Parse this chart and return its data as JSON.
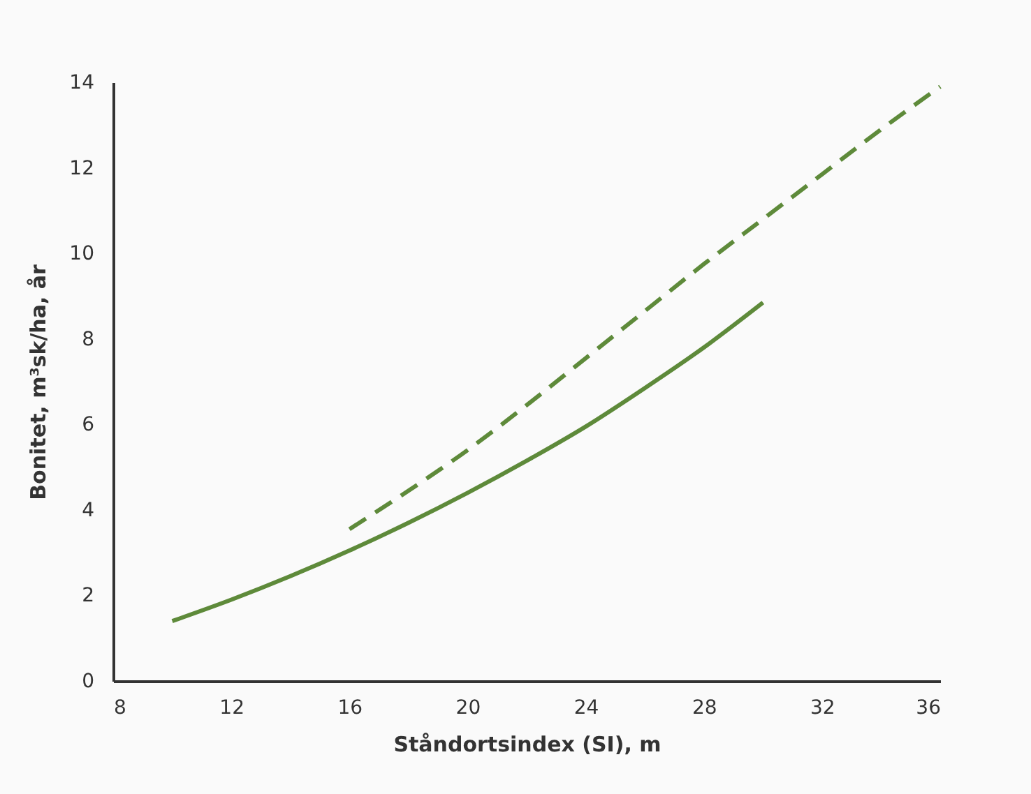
{
  "chart_data": {
    "type": "line",
    "xlabel": "Ståndortsindex (SI), m",
    "ylabel": "Bonitet, m³sk/ha, år",
    "xlim": [
      8,
      36
    ],
    "ylim": [
      0,
      14
    ],
    "xticks": [
      8,
      12,
      16,
      20,
      24,
      28,
      32,
      36
    ],
    "yticks": [
      0,
      2,
      4,
      6,
      8,
      10,
      12,
      14
    ],
    "grid": false,
    "series": [
      {
        "color": "#5e8a3a",
        "line_style": "solid",
        "x": [
          10,
          12,
          14,
          16,
          18,
          20,
          22,
          24,
          26,
          28,
          30
        ],
        "values": [
          1.4,
          1.9,
          2.45,
          3.05,
          3.7,
          4.4,
          5.15,
          5.95,
          6.85,
          7.8,
          8.85
        ]
      },
      {
        "color": "#5e8a3a",
        "line_style": "dashed",
        "x": [
          16,
          18,
          20,
          22,
          24,
          26,
          28,
          30,
          32,
          34,
          36
        ],
        "values": [
          3.55,
          4.45,
          5.4,
          6.45,
          7.55,
          8.65,
          9.75,
          10.8,
          11.85,
          12.9,
          13.9
        ]
      }
    ]
  }
}
